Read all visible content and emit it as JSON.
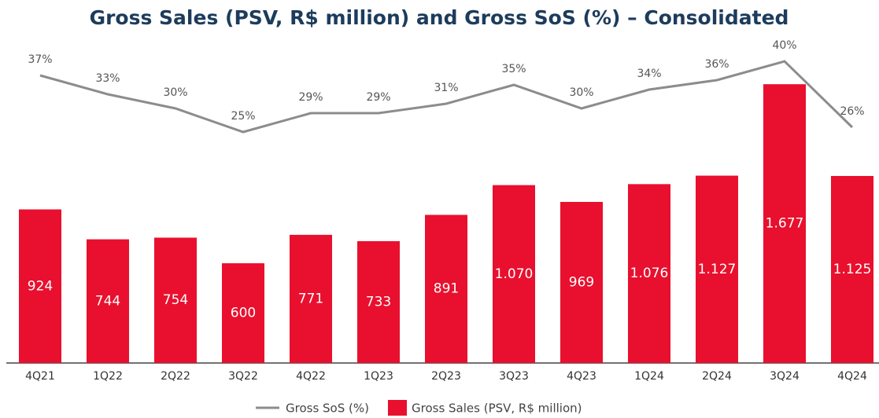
{
  "chart_data": {
    "type": "bar",
    "title": "Gross Sales (PSV, R$ million) and Gross SoS (%) – Consolidated",
    "categories": [
      "4Q21",
      "1Q22",
      "2Q22",
      "3Q22",
      "4Q22",
      "1Q23",
      "2Q23",
      "3Q23",
      "4Q23",
      "1Q24",
      "2Q24",
      "3Q24",
      "4Q24"
    ],
    "series": [
      {
        "name": "Gross SoS (%)",
        "type": "line",
        "axis": "y2",
        "color": "#8c8c8c",
        "values": [
          37,
          33,
          30,
          25,
          29,
          29,
          31,
          35,
          30,
          34,
          36,
          40,
          26
        ],
        "value_labels": [
          "37%",
          "33%",
          "30%",
          "25%",
          "29%",
          "29%",
          "31%",
          "35%",
          "30%",
          "34%",
          "36%",
          "40%",
          "26%"
        ]
      },
      {
        "name": "Gross Sales (PSV, R$ million)",
        "type": "bar",
        "color": "#e8102e",
        "values": [
          924,
          744,
          754,
          600,
          771,
          733,
          891,
          1070,
          969,
          1076,
          1127,
          1677,
          1125
        ],
        "value_labels": [
          "924",
          "744",
          "754",
          "600",
          "771",
          "733",
          "891",
          "1.070",
          "969",
          "1.076",
          "1.127",
          "1.677",
          "1.125"
        ]
      }
    ],
    "ylim": [
      0,
      1900
    ],
    "y2lim": [
      -24,
      43
    ]
  }
}
